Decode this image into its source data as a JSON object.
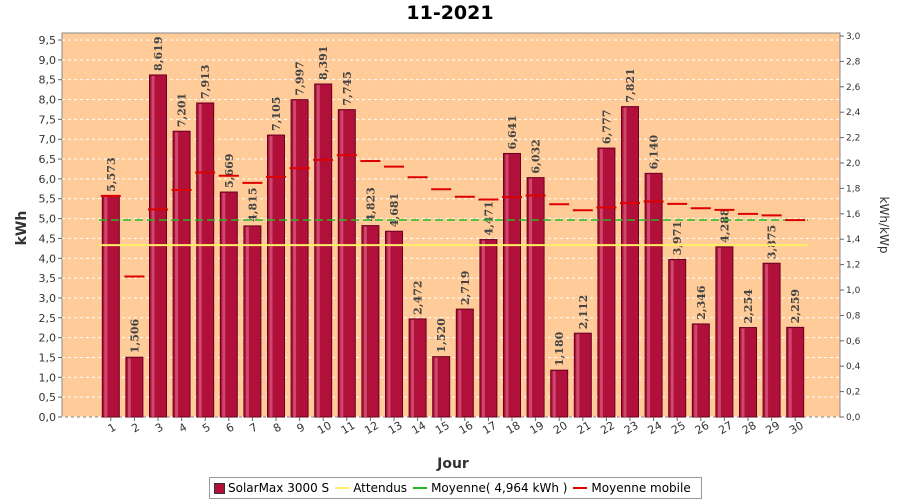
{
  "chart_data": {
    "type": "bar",
    "title": "11-2021",
    "xlabel": "Jour",
    "ylabel": "kWh",
    "ylabel_right": "kWh/kWp",
    "ylim": [
      0,
      9.7
    ],
    "ylim_right": [
      0,
      3.0
    ],
    "y_ticks": [
      "0,0",
      "0,5",
      "1,0",
      "1,5",
      "2,0",
      "2,5",
      "3,0",
      "3,5",
      "4,0",
      "4,5",
      "5,0",
      "5,5",
      "6,0",
      "6,5",
      "7,0",
      "7,5",
      "8,0",
      "8,5",
      "9,0",
      "9,5"
    ],
    "y_ticks_right": [
      "0,0",
      "0,2",
      "0,4",
      "0,6",
      "0,8",
      "1,0",
      "1,2",
      "1,4",
      "1,6",
      "1,8",
      "2,0",
      "2,2",
      "2,4",
      "2,6",
      "2,8",
      "3,0"
    ],
    "categories": [
      "1",
      "2",
      "3",
      "4",
      "5",
      "6",
      "7",
      "8",
      "9",
      "10",
      "11",
      "12",
      "13",
      "14",
      "15",
      "16",
      "17",
      "18",
      "19",
      "20",
      "21",
      "22",
      "23",
      "24",
      "25",
      "26",
      "27",
      "28",
      "29",
      "30"
    ],
    "series": [
      {
        "name": "SolarMax 3000 S",
        "type": "bar",
        "color": "#b0103a",
        "values": [
          5.573,
          1.506,
          8.619,
          7.201,
          7.913,
          5.669,
          4.815,
          7.105,
          7.997,
          8.391,
          7.745,
          4.823,
          4.681,
          2.472,
          1.52,
          2.719,
          4.471,
          6.641,
          6.032,
          1.18,
          2.112,
          6.777,
          7.821,
          6.14,
          3.971,
          2.346,
          4.288,
          2.254,
          3.875,
          2.259
        ],
        "labels": [
          "5,573",
          "1,506",
          "8,619",
          "7,201",
          "7,913",
          "5,669",
          "4,815",
          "7,105",
          "7,997",
          "8,391",
          "7,745",
          "4,823",
          "4,681",
          "2,472",
          "1,520",
          "2,719",
          "4,471",
          "6,641",
          "6,032",
          "1,180",
          "2,112",
          "6,777",
          "7,821",
          "6,140",
          "3,971",
          "2,346",
          "4,288",
          "2,254",
          "3,875",
          "2,259"
        ]
      },
      {
        "name": "Attendus",
        "type": "line",
        "color": "#ffee66",
        "values_const": 4.33
      },
      {
        "name": "Moyenne( 4,964 kWh )",
        "type": "line",
        "color": "#22bb22",
        "values_const": 4.964
      },
      {
        "name": "Moyenne mobile",
        "type": "step",
        "color": "#dd0000",
        "values": [
          5.573,
          3.54,
          5.23,
          5.72,
          6.16,
          6.08,
          5.9,
          6.05,
          6.27,
          6.48,
          6.6,
          6.45,
          6.31,
          6.04,
          5.74,
          5.55,
          5.48,
          5.54,
          5.58,
          5.36,
          5.21,
          5.28,
          5.39,
          5.43,
          5.37,
          5.26,
          5.22,
          5.12,
          5.08,
          4.96
        ]
      }
    ],
    "grid": true,
    "legend_position": "bottom",
    "colors": {
      "plot_bg": "#ffcc99",
      "grid": "#ffffff"
    }
  }
}
